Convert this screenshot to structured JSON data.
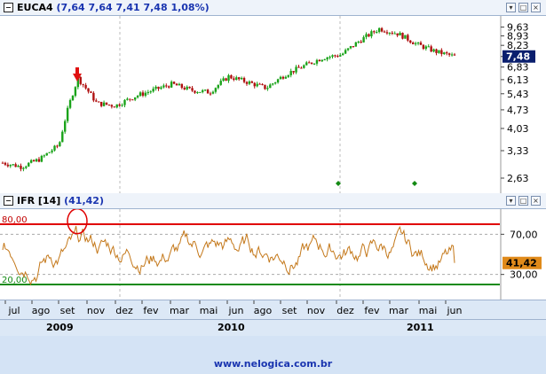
{
  "price_panel": {
    "symbol": "EUCA4",
    "quote": "(7,64  7,64  7,41  7,48  1,08%)",
    "last_price_tag": "7,48",
    "y_ticks": [
      "9,63",
      "8,93",
      "8,23",
      "7,48",
      "6,83",
      "6,13",
      "5,43",
      "4,73",
      "4,03",
      "3,33",
      "2,63"
    ],
    "window_buttons": [
      "▾",
      "□",
      "×"
    ]
  },
  "ifr_panel": {
    "title": "IFR [14]",
    "value": "(41,42)",
    "last_value_tag": "41,42",
    "level_high": "80,00",
    "level_low": "20,00",
    "y_ticks": [
      "70,00",
      "30,00"
    ],
    "window_buttons": [
      "▾",
      "□",
      "×"
    ]
  },
  "axis": {
    "months": [
      "jul",
      "ago",
      "set",
      "nov",
      "dez",
      "fev",
      "mar",
      "mai",
      "jun",
      "ago",
      "set",
      "nov",
      "dez",
      "fev",
      "mar",
      "mai",
      "jun"
    ],
    "years": [
      "2009",
      "2010",
      "2011"
    ]
  },
  "footer": "www.nelogica.com.br",
  "colors": {
    "up": "#1aa31a",
    "down": "#b01010",
    "ifr": "#c4781a",
    "high_line": "#e00000",
    "low_line": "#138a13",
    "tag": "#0a1f6e",
    "ifr_tag": "#e08a1a"
  },
  "chart_data": [
    {
      "type": "candlestick",
      "title": "EUCA4",
      "ylim": [
        2.4,
        10.2
      ],
      "y_scale": "log",
      "x": [
        "2009-06",
        "2009-07",
        "2009-08",
        "2009-09",
        "2009-10",
        "2009-11",
        "2009-12",
        "2010-01",
        "2010-02",
        "2010-03",
        "2010-04",
        "2010-05",
        "2010-06",
        "2010-07",
        "2010-08",
        "2010-09",
        "2010-10",
        "2010-11",
        "2010-12",
        "2011-01",
        "2011-02",
        "2011-03",
        "2011-04",
        "2011-05",
        "2011-06"
      ],
      "close": [
        3.0,
        2.9,
        3.1,
        3.5,
        6.2,
        5.0,
        4.9,
        5.3,
        5.6,
        5.9,
        5.6,
        5.5,
        6.3,
        6.0,
        5.7,
        6.4,
        6.9,
        7.4,
        7.6,
        8.6,
        9.5,
        9.1,
        8.3,
        7.8,
        7.48
      ]
    },
    {
      "type": "line",
      "title": "IFR [14]",
      "ylim": [
        5,
        95
      ],
      "y_ticks": [
        70,
        30
      ],
      "levels": [
        80,
        20
      ],
      "last_value": 41.42
    }
  ]
}
